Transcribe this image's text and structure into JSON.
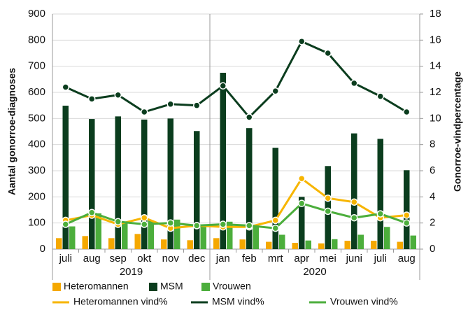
{
  "chart_data": {
    "type": "bar",
    "category_groups": [
      {
        "label": "2019",
        "categories": [
          "juli",
          "aug",
          "sep",
          "okt",
          "nov",
          "dec"
        ]
      },
      {
        "label": "2020",
        "categories": [
          "jan",
          "feb",
          "mrt",
          "apr",
          "mei",
          "juni",
          "juli",
          "aug"
        ]
      }
    ],
    "ylabel": "Aantal gonorroe-diagnoses",
    "y2label": "Gonorroe-vindpercentage",
    "ylim": [
      0,
      900
    ],
    "yticks": [
      0,
      100,
      200,
      300,
      400,
      500,
      600,
      700,
      800,
      900
    ],
    "y2lim": [
      0,
      18
    ],
    "y2ticks": [
      0,
      2,
      4,
      6,
      8,
      10,
      12,
      14,
      16,
      18
    ],
    "grid": true,
    "legend": "bottom",
    "series": [
      {
        "name": "Heteromannen",
        "type": "bar",
        "color": "#f5a800",
        "values": [
          42,
          50,
          42,
          58,
          37,
          34,
          42,
          37,
          28,
          24,
          22,
          32,
          32,
          28
        ]
      },
      {
        "name": "MSM",
        "type": "bar",
        "color": "#0b3d1e",
        "values": [
          549,
          498,
          508,
          496,
          500,
          452,
          675,
          463,
          388,
          200,
          318,
          443,
          422,
          302
        ]
      },
      {
        "name": "Vrouwen",
        "type": "bar",
        "color": "#4cae3c",
        "values": [
          87,
          137,
          105,
          110,
          113,
          90,
          105,
          90,
          55,
          33,
          38,
          55,
          85,
          52
        ]
      },
      {
        "name": "Heteromannen vind%",
        "type": "line",
        "axis": "y2",
        "color": "#f7b500",
        "values": [
          2.2,
          2.6,
          1.9,
          2.4,
          1.6,
          1.8,
          1.7,
          1.7,
          2.2,
          5.4,
          3.9,
          3.6,
          2.4,
          2.6
        ]
      },
      {
        "name": "MSM vind%",
        "type": "line",
        "axis": "y2",
        "color": "#0b3d1e",
        "values": [
          12.4,
          11.5,
          11.8,
          10.5,
          11.1,
          11.0,
          12.5,
          10.1,
          12.1,
          15.9,
          15.0,
          12.7,
          11.7,
          10.5
        ]
      },
      {
        "name": "Vrouwen vind%",
        "type": "line",
        "axis": "y2",
        "color": "#4cae3c",
        "values": [
          1.9,
          2.8,
          2.1,
          1.9,
          2.0,
          1.8,
          1.9,
          1.8,
          1.6,
          3.5,
          2.9,
          2.4,
          2.7,
          2.0
        ]
      }
    ]
  }
}
